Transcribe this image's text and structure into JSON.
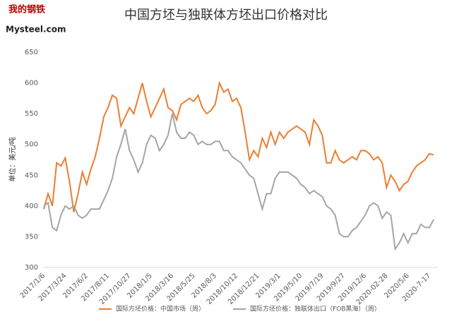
{
  "logo": {
    "top": "我的钢铁",
    "bottom": "Mysteel.com"
  },
  "chart_data": {
    "type": "line",
    "title": "中国方坯与独联体方坯出口价格对比",
    "y_label": "单位：美元/吨",
    "categories": [
      "2017/1/6",
      null,
      null,
      null,
      null,
      "2017/3/24",
      null,
      null,
      null,
      null,
      "2017/6/2",
      null,
      null,
      null,
      null,
      "2017/8/11",
      null,
      null,
      null,
      null,
      "2017/10/27",
      null,
      null,
      null,
      null,
      "2018/1/5",
      null,
      null,
      null,
      null,
      "2018/3/16",
      null,
      null,
      null,
      null,
      "2018/5/25",
      null,
      null,
      null,
      null,
      "2018/8/3",
      null,
      null,
      null,
      null,
      "2018/10/12",
      null,
      null,
      null,
      null,
      "2018/12/21",
      null,
      null,
      null,
      null,
      "2019/3/1",
      null,
      null,
      null,
      null,
      "2019/5/10",
      null,
      null,
      null,
      null,
      "2019/7/19",
      null,
      null,
      null,
      null,
      "2019/9/27",
      null,
      null,
      null,
      null,
      "2019/12/6",
      null,
      null,
      null,
      null,
      "2020-02-28",
      null,
      null,
      null,
      null,
      "2020/5/6",
      null,
      null,
      null,
      null,
      "2020-7-17",
      null
    ],
    "series": [
      {
        "name": "国际方坯价格：中国市场（周）",
        "color": "#ed7d31",
        "values": [
          395,
          420,
          400,
          470,
          465,
          478,
          440,
          390,
          420,
          455,
          435,
          460,
          480,
          510,
          545,
          560,
          580,
          575,
          530,
          545,
          560,
          550,
          575,
          600,
          570,
          545,
          560,
          575,
          590,
          560,
          555,
          540,
          565,
          570,
          575,
          570,
          580,
          560,
          550,
          555,
          565,
          600,
          585,
          590,
          570,
          575,
          560,
          520,
          475,
          490,
          480,
          510,
          495,
          520,
          500,
          520,
          510,
          520,
          525,
          530,
          525,
          520,
          500,
          540,
          530,
          515,
          470,
          470,
          490,
          475,
          470,
          475,
          480,
          475,
          490,
          490,
          485,
          475,
          480,
          470,
          430,
          450,
          440,
          425,
          435,
          440,
          455,
          465,
          470,
          475,
          485,
          483
        ]
      },
      {
        "name": "国际方坯价格：独联体出口（FOB黑海）（周）",
        "color": "#a5a5a5",
        "values": [
          400,
          405,
          365,
          360,
          385,
          400,
          395,
          400,
          385,
          380,
          385,
          395,
          395,
          395,
          410,
          425,
          445,
          480,
          500,
          525,
          490,
          475,
          455,
          470,
          500,
          515,
          510,
          490,
          500,
          515,
          550,
          520,
          510,
          510,
          520,
          515,
          500,
          505,
          500,
          500,
          505,
          505,
          490,
          490,
          480,
          475,
          470,
          460,
          450,
          445,
          420,
          395,
          420,
          420,
          445,
          455,
          455,
          455,
          450,
          445,
          435,
          430,
          420,
          425,
          420,
          415,
          400,
          395,
          385,
          355,
          350,
          350,
          360,
          365,
          375,
          385,
          400,
          405,
          400,
          380,
          390,
          385,
          330,
          340,
          355,
          340,
          355,
          355,
          370,
          365,
          365,
          378
        ]
      }
    ],
    "ylim": [
      300,
      650
    ],
    "yticks": [
      300,
      350,
      400,
      450,
      500,
      550,
      600,
      650
    ],
    "grid": false
  }
}
